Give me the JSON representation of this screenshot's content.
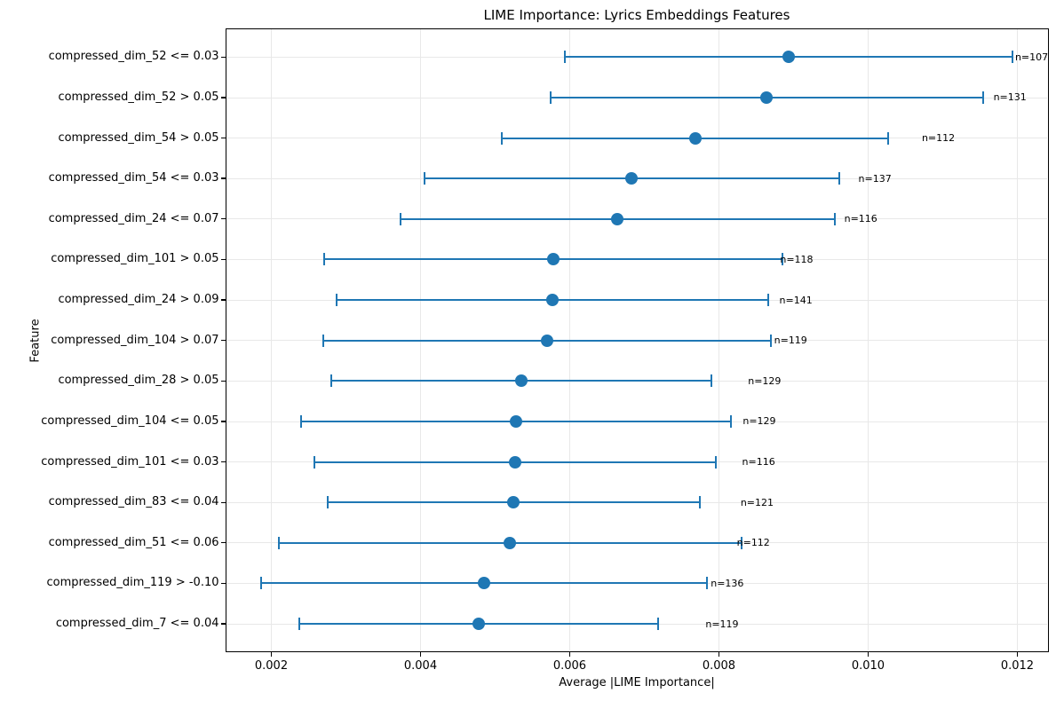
{
  "chart_data": {
    "type": "scatter",
    "subtype": "horizontal-errorbar",
    "title": "LIME Importance: Lyrics Embeddings Features",
    "xlabel": "Average |LIME Importance|",
    "ylabel": "Feature",
    "xlim": [
      0.001381,
      0.012423
    ],
    "x_ticks": [
      0.002,
      0.004,
      0.006,
      0.008,
      0.01,
      0.012
    ],
    "x_tick_labels": [
      "0.002",
      "0.004",
      "0.006",
      "0.008",
      "0.010",
      "0.012"
    ],
    "grid": true,
    "legend": null,
    "annotation_dx": 0.00304,
    "colors": {
      "marker": "#1f77b4",
      "errorbar": "#1f77b4",
      "grid": "#e8e8e8",
      "spine": "#000000",
      "text": "#000000",
      "background": "#ffffff"
    },
    "rows": [
      {
        "feature": "compressed_dim_52 <= 0.03",
        "n": 107,
        "count_label": "n=107",
        "mean": 0.00893,
        "std": 0.003
      },
      {
        "feature": "compressed_dim_52 > 0.05",
        "n": 131,
        "count_label": "n=131",
        "mean": 0.00864,
        "std": 0.0029
      },
      {
        "feature": "compressed_dim_54 > 0.05",
        "n": 112,
        "count_label": "n=112",
        "mean": 0.00768,
        "std": 0.00259
      },
      {
        "feature": "compressed_dim_54 <= 0.03",
        "n": 137,
        "count_label": "n=137",
        "mean": 0.00683,
        "std": 0.00278
      },
      {
        "feature": "compressed_dim_24 <= 0.07",
        "n": 116,
        "count_label": "n=116",
        "mean": 0.00664,
        "std": 0.00291
      },
      {
        "feature": "compressed_dim_101 > 0.05",
        "n": 118,
        "count_label": "n=118",
        "mean": 0.00578,
        "std": 0.00307
      },
      {
        "feature": "compressed_dim_24 > 0.09",
        "n": 141,
        "count_label": "n=141",
        "mean": 0.00577,
        "std": 0.00289
      },
      {
        "feature": "compressed_dim_104 > 0.07",
        "n": 119,
        "count_label": "n=119",
        "mean": 0.0057,
        "std": 0.003
      },
      {
        "feature": "compressed_dim_28 > 0.05",
        "n": 129,
        "count_label": "n=129",
        "mean": 0.00535,
        "std": 0.00255
      },
      {
        "feature": "compressed_dim_104 <= 0.05",
        "n": 129,
        "count_label": "n=129",
        "mean": 0.00528,
        "std": 0.00288
      },
      {
        "feature": "compressed_dim_101 <= 0.03",
        "n": 116,
        "count_label": "n=116",
        "mean": 0.00527,
        "std": 0.00269
      },
      {
        "feature": "compressed_dim_83 <= 0.04",
        "n": 121,
        "count_label": "n=121",
        "mean": 0.00525,
        "std": 0.00249
      },
      {
        "feature": "compressed_dim_51 <= 0.06",
        "n": 112,
        "count_label": "n=112",
        "mean": 0.0052,
        "std": 0.0031
      },
      {
        "feature": "compressed_dim_119 > -0.10",
        "n": 136,
        "count_label": "n=136",
        "mean": 0.00485,
        "std": 0.00299
      },
      {
        "feature": "compressed_dim_7 <= 0.04",
        "n": 119,
        "count_label": "n=119",
        "mean": 0.00478,
        "std": 0.00241
      }
    ]
  }
}
